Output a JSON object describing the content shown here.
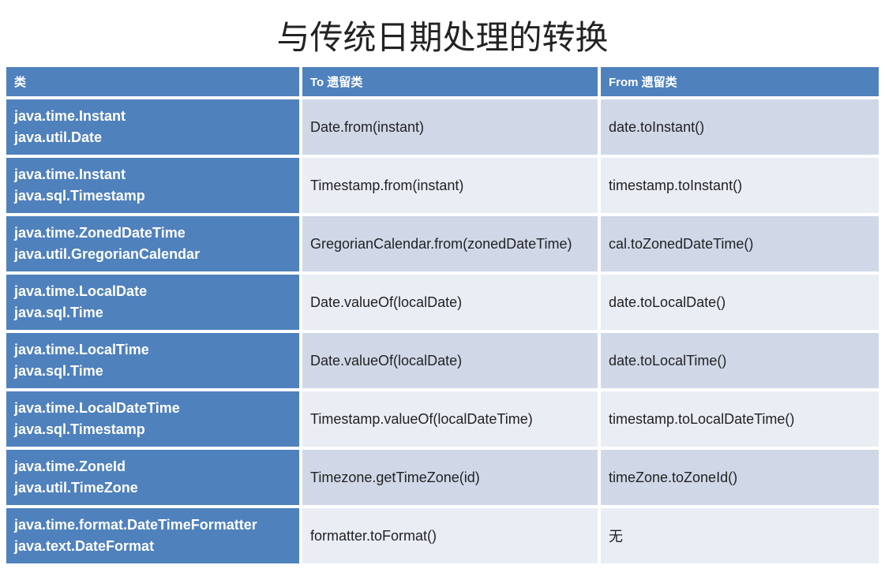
{
  "title": "与传统日期处理的转换",
  "table": {
    "headers": [
      "类",
      "To 遗留类",
      "From 遗留类"
    ],
    "rows": [
      {
        "class_line1": "java.time.Instant",
        "class_line2": "java.util.Date",
        "to": "Date.from(instant)",
        "from": "date.toInstant()"
      },
      {
        "class_line1": "java.time.Instant",
        "class_line2": "java.sql.Timestamp",
        "to": "Timestamp.from(instant)",
        "from": "timestamp.toInstant()"
      },
      {
        "class_line1": "java.time.ZonedDateTime",
        "class_line2": "java.util.GregorianCalendar",
        "to": "GregorianCalendar.from(zonedDateTime)",
        "from": "cal.toZonedDateTime()"
      },
      {
        "class_line1": "java.time.LocalDate",
        "class_line2": "java.sql.Time",
        "to": "Date.valueOf(localDate)",
        "from": "date.toLocalDate()"
      },
      {
        "class_line1": "java.time.LocalTime",
        "class_line2": "java.sql.Time",
        "to": "Date.valueOf(localDate)",
        "from": "date.toLocalTime()"
      },
      {
        "class_line1": "java.time.LocalDateTime",
        "class_line2": "java.sql.Timestamp",
        "to": "Timestamp.valueOf(localDateTime)",
        "from": "timestamp.toLocalDateTime()"
      },
      {
        "class_line1": "java.time.ZoneId",
        "class_line2": "java.util.TimeZone",
        "to": "Timezone.getTimeZone(id)",
        "from": "timeZone.toZoneId()"
      },
      {
        "class_line1": "java.time.format.DateTimeFormatter",
        "class_line2": "java.text.DateFormat",
        "to": "formatter.toFormat()",
        "from": "无"
      }
    ]
  },
  "colors": {
    "header_bg": "#4f81bd",
    "row_light": "#d0d8e8",
    "row_dark": "#e9edf4",
    "border": "#ffffff",
    "text_white": "#ffffff",
    "text_dark": "#222222"
  }
}
